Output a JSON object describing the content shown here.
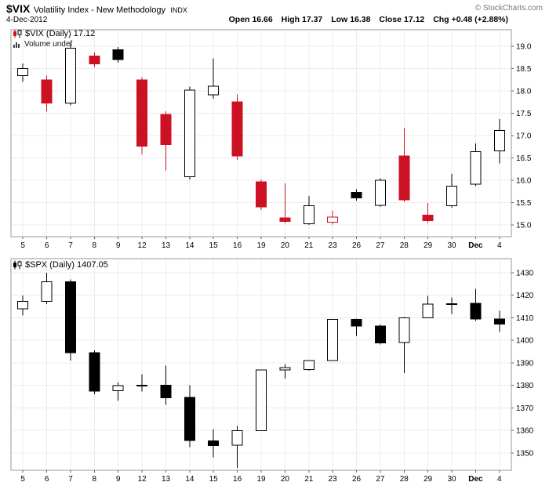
{
  "header": {
    "symbol": "$VIX",
    "name": "Volatility Index - New Methodology",
    "exchange": "INDX",
    "copyright": "© StockCharts.com",
    "date": "4-Dec-2012",
    "quote": {
      "open_label": "Open",
      "open": "16.66",
      "high_label": "High",
      "high": "17.37",
      "low_label": "Low",
      "low": "16.38",
      "close_label": "Close",
      "close": "17.12",
      "chg_label": "Chg",
      "chg": "+0.48 (+2.88%)"
    }
  },
  "colors": {
    "candle_red": "#cc1122",
    "candle_black": "#000000",
    "candle_white": "#ffffff",
    "grid": "#ececec",
    "border": "#999999",
    "axis_tick": "#666666"
  },
  "chart_data": [
    {
      "type": "candlestick",
      "legend": "$VIX (Daily) 17.12",
      "volume_legend": "Volume undef",
      "ylim": [
        14.74,
        19.37
      ],
      "y_ticks": [
        {
          "v": 19.0,
          "label": "19.0"
        },
        {
          "v": 18.5,
          "label": "18.5"
        },
        {
          "v": 18.0,
          "label": "18.0"
        },
        {
          "v": 17.5,
          "label": "17.5"
        },
        {
          "v": 17.0,
          "label": "17.0"
        },
        {
          "v": 16.5,
          "label": "16.5"
        },
        {
          "v": 16.0,
          "label": "16.0"
        },
        {
          "v": 15.5,
          "label": "15.5"
        },
        {
          "v": 15.0,
          "label": "15.0"
        }
      ],
      "bold_x_labels": [
        "Dec"
      ],
      "candles": [
        {
          "x": "5",
          "o": 18.34,
          "h": 18.62,
          "l": 18.2,
          "c": 18.5,
          "style": "white"
        },
        {
          "x": "6",
          "o": 18.25,
          "h": 18.34,
          "l": 17.55,
          "c": 17.73,
          "style": "red"
        },
        {
          "x": "7",
          "o": 17.73,
          "h": 19.06,
          "l": 17.68,
          "c": 18.96,
          "style": "white"
        },
        {
          "x": "8",
          "o": 18.78,
          "h": 18.86,
          "l": 18.54,
          "c": 18.61,
          "style": "red"
        },
        {
          "x": "9",
          "o": 18.92,
          "h": 18.98,
          "l": 18.63,
          "c": 18.7,
          "style": "black"
        },
        {
          "x": "12",
          "o": 18.25,
          "h": 18.31,
          "l": 16.58,
          "c": 16.77,
          "style": "red"
        },
        {
          "x": "13",
          "o": 17.48,
          "h": 17.55,
          "l": 16.22,
          "c": 16.8,
          "style": "red"
        },
        {
          "x": "14",
          "o": 16.08,
          "h": 18.1,
          "l": 16.02,
          "c": 18.02,
          "style": "white"
        },
        {
          "x": "15",
          "o": 17.91,
          "h": 18.73,
          "l": 17.83,
          "c": 18.11,
          "style": "white"
        },
        {
          "x": "16",
          "o": 17.76,
          "h": 17.92,
          "l": 16.46,
          "c": 16.55,
          "style": "red"
        },
        {
          "x": "19",
          "o": 15.97,
          "h": 16.02,
          "l": 15.34,
          "c": 15.41,
          "style": "red"
        },
        {
          "x": "20",
          "o": 15.16,
          "h": 15.93,
          "l": 15.04,
          "c": 15.08,
          "style": "red"
        },
        {
          "x": "21",
          "o": 15.03,
          "h": 15.65,
          "l": 15.0,
          "c": 15.43,
          "style": "white"
        },
        {
          "x": "23",
          "o": 15.06,
          "h": 15.32,
          "l": 15.01,
          "c": 15.18,
          "style": "red-hollow"
        },
        {
          "x": "26",
          "o": 15.73,
          "h": 15.8,
          "l": 15.55,
          "c": 15.61,
          "style": "black"
        },
        {
          "x": "27",
          "o": 15.44,
          "h": 16.05,
          "l": 15.41,
          "c": 16.0,
          "style": "white"
        },
        {
          "x": "28",
          "o": 16.55,
          "h": 17.18,
          "l": 15.52,
          "c": 15.56,
          "style": "red"
        },
        {
          "x": "29",
          "o": 15.22,
          "h": 15.49,
          "l": 15.05,
          "c": 15.1,
          "style": "red"
        },
        {
          "x": "30",
          "o": 15.43,
          "h": 16.14,
          "l": 15.39,
          "c": 15.87,
          "style": "white"
        },
        {
          "x": "Dec",
          "o": 15.92,
          "h": 16.83,
          "l": 15.87,
          "c": 16.64,
          "style": "white"
        },
        {
          "x": "4",
          "o": 16.66,
          "h": 17.37,
          "l": 16.38,
          "c": 17.12,
          "style": "white"
        }
      ]
    },
    {
      "type": "candlestick",
      "legend": "$SPX (Daily) 1407.05",
      "ylim": [
        1342.3,
        1436.2
      ],
      "y_ticks": [
        {
          "v": 1430,
          "label": "1430"
        },
        {
          "v": 1420,
          "label": "1420"
        },
        {
          "v": 1410,
          "label": "1410"
        },
        {
          "v": 1400,
          "label": "1400"
        },
        {
          "v": 1390,
          "label": "1390"
        },
        {
          "v": 1380,
          "label": "1380"
        },
        {
          "v": 1370,
          "label": "1370"
        },
        {
          "v": 1360,
          "label": "1360"
        },
        {
          "v": 1350,
          "label": "1350"
        }
      ],
      "bold_x_labels": [
        "Dec"
      ],
      "candles": [
        {
          "x": "5",
          "o": 1414.0,
          "h": 1419.9,
          "l": 1411.0,
          "c": 1417.3,
          "style": "white"
        },
        {
          "x": "6",
          "o": 1417.3,
          "h": 1430.0,
          "l": 1416.0,
          "c": 1426.0,
          "style": "white"
        },
        {
          "x": "7",
          "o": 1426.0,
          "h": 1427.0,
          "l": 1391.0,
          "c": 1394.5,
          "style": "black"
        },
        {
          "x": "8",
          "o": 1394.5,
          "h": 1395.5,
          "l": 1376.0,
          "c": 1377.5,
          "style": "black"
        },
        {
          "x": "9",
          "o": 1377.6,
          "h": 1381.2,
          "l": 1373.0,
          "c": 1379.9,
          "style": "white"
        },
        {
          "x": "12",
          "o": 1379.9,
          "h": 1384.9,
          "l": 1377.2,
          "c": 1380.0,
          "style": "white"
        },
        {
          "x": "13",
          "o": 1380.0,
          "h": 1388.8,
          "l": 1371.4,
          "c": 1374.5,
          "style": "black"
        },
        {
          "x": "14",
          "o": 1374.6,
          "h": 1380.1,
          "l": 1352.5,
          "c": 1355.5,
          "style": "black"
        },
        {
          "x": "15",
          "o": 1355.4,
          "h": 1360.6,
          "l": 1348.0,
          "c": 1353.3,
          "style": "black"
        },
        {
          "x": "16",
          "o": 1353.4,
          "h": 1362.0,
          "l": 1343.3,
          "c": 1359.9,
          "style": "white"
        },
        {
          "x": "19",
          "o": 1359.9,
          "h": 1386.9,
          "l": 1359.9,
          "c": 1386.9,
          "style": "white"
        },
        {
          "x": "20",
          "o": 1386.8,
          "h": 1389.5,
          "l": 1383.0,
          "c": 1387.8,
          "style": "white"
        },
        {
          "x": "21",
          "o": 1387.0,
          "h": 1391.2,
          "l": 1386.4,
          "c": 1391.0,
          "style": "white"
        },
        {
          "x": "23",
          "o": 1391.0,
          "h": 1409.2,
          "l": 1391.0,
          "c": 1409.2,
          "style": "white"
        },
        {
          "x": "26",
          "o": 1409.2,
          "h": 1409.6,
          "l": 1402.0,
          "c": 1406.3,
          "style": "black"
        },
        {
          "x": "27",
          "o": 1406.3,
          "h": 1407.0,
          "l": 1398.1,
          "c": 1398.9,
          "style": "black"
        },
        {
          "x": "28",
          "o": 1398.9,
          "h": 1410.3,
          "l": 1385.4,
          "c": 1409.9,
          "style": "white"
        },
        {
          "x": "29",
          "o": 1410.0,
          "h": 1419.7,
          "l": 1410.0,
          "c": 1416.0,
          "style": "white"
        },
        {
          "x": "30",
          "o": 1416.0,
          "h": 1418.9,
          "l": 1411.6,
          "c": 1416.2,
          "style": "white"
        },
        {
          "x": "Dec",
          "o": 1416.3,
          "h": 1422.8,
          "l": 1408.6,
          "c": 1409.5,
          "style": "black"
        },
        {
          "x": "4",
          "o": 1409.5,
          "h": 1413.0,
          "l": 1403.6,
          "c": 1407.1,
          "style": "black"
        }
      ]
    }
  ]
}
